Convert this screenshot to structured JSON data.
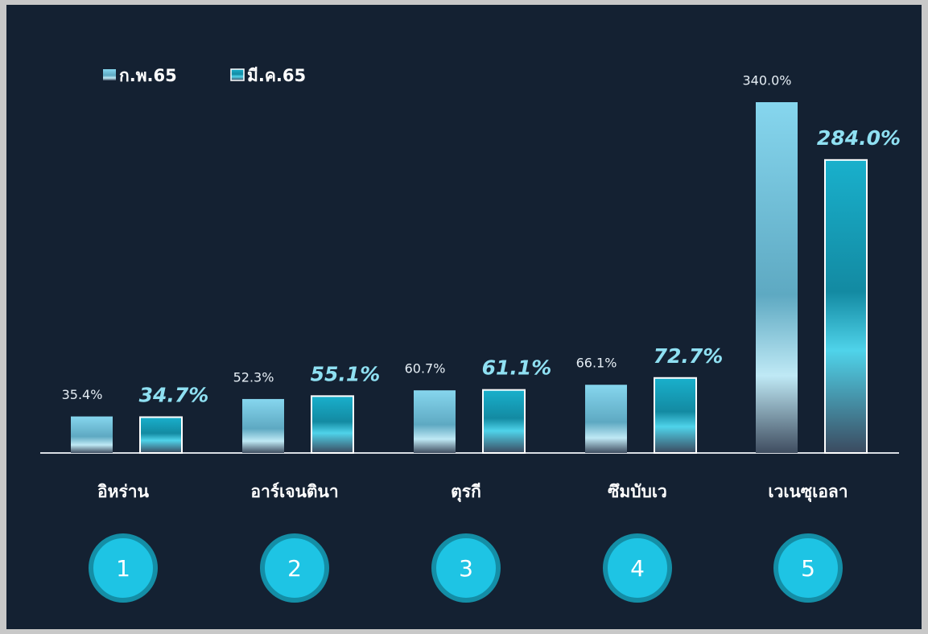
{
  "chart_data": {
    "type": "bar",
    "categories": [
      "อิหร่าน",
      "อาร์เจนตินา",
      "ตุรกี",
      "ซึมบับเว",
      "เวเนซุเอลา"
    ],
    "series": [
      {
        "name": "ก.พ.65",
        "color": "#7fcfe6",
        "values": [
          35.4,
          52.3,
          60.7,
          66.1,
          340.0
        ],
        "value_labels": [
          "35.4%",
          "52.3%",
          "60.7%",
          "66.1%",
          "340.0%"
        ]
      },
      {
        "name": "มี.ค.65",
        "color": "#17a9c4",
        "values": [
          34.7,
          55.1,
          61.1,
          72.7,
          284.0
        ],
        "value_labels": [
          "34.7%",
          "55.1%",
          "61.1%",
          "72.7%",
          "284.0%"
        ]
      }
    ],
    "ranks": [
      1,
      2,
      3,
      4,
      5
    ]
  }
}
